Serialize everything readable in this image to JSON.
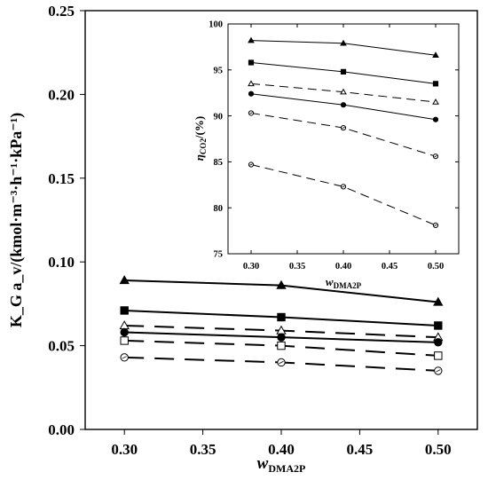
{
  "chart_data": [
    {
      "type": "line",
      "panel": "main",
      "x": [
        0.3,
        0.4,
        0.5
      ],
      "xlim": [
        0.275,
        0.525
      ],
      "ylim": [
        0.0,
        0.25
      ],
      "xticks": [
        0.3,
        0.35,
        0.4,
        0.45,
        0.5
      ],
      "yticks": [
        0.0,
        0.05,
        0.1,
        0.15,
        0.2,
        0.25
      ],
      "xtick_labels": [
        "0.30",
        "0.35",
        "0.40",
        "0.45",
        "0.50"
      ],
      "ytick_labels": [
        "0.00",
        "0.05",
        "0.10",
        "0.15",
        "0.20",
        "0.25"
      ],
      "xlabel_main": "w",
      "xlabel_sub": "DMA2P",
      "ylabel": "K_G a_v/(kmol·m⁻³·h⁻¹·kPa⁻¹)",
      "grid": false,
      "series": [
        {
          "values": [
            0.089,
            0.086,
            0.076
          ],
          "marker": "filled-triangle",
          "line": "solid"
        },
        {
          "values": [
            0.071,
            0.067,
            0.062
          ],
          "marker": "filled-square",
          "line": "solid"
        },
        {
          "values": [
            0.062,
            0.059,
            0.055
          ],
          "marker": "open-triangle",
          "line": "dashed"
        },
        {
          "values": [
            0.058,
            0.055,
            0.052
          ],
          "marker": "filled-circle",
          "line": "solid"
        },
        {
          "values": [
            0.053,
            0.05,
            0.044
          ],
          "marker": "open-square",
          "line": "dashed"
        },
        {
          "values": [
            0.043,
            0.04,
            0.035
          ],
          "marker": "open-circle",
          "line": "dashed"
        }
      ]
    },
    {
      "type": "line",
      "panel": "inset",
      "x": [
        0.3,
        0.4,
        0.5
      ],
      "xlim": [
        0.275,
        0.525
      ],
      "ylim": [
        75,
        100
      ],
      "xticks": [
        0.3,
        0.35,
        0.4,
        0.45,
        0.5
      ],
      "yticks": [
        75,
        80,
        85,
        90,
        95,
        100
      ],
      "xtick_labels": [
        "0.30",
        "0.35",
        "0.40",
        "0.45",
        "0.50"
      ],
      "ytick_labels": [
        "75",
        "80",
        "85",
        "90",
        "95",
        "100"
      ],
      "xlabel_main": "w",
      "xlabel_sub": "DMA2P",
      "ylabel_main": "η",
      "ylabel_sub": "CO2",
      "ylabel_tail": "/(%)",
      "grid": false,
      "series": [
        {
          "values": [
            98.2,
            97.9,
            96.6
          ],
          "marker": "filled-triangle",
          "line": "solid"
        },
        {
          "values": [
            95.8,
            94.8,
            93.5
          ],
          "marker": "filled-square",
          "line": "solid"
        },
        {
          "values": [
            93.5,
            92.6,
            91.5
          ],
          "marker": "open-triangle",
          "line": "dashed"
        },
        {
          "values": [
            92.4,
            91.2,
            89.6
          ],
          "marker": "filled-circle",
          "line": "solid"
        },
        {
          "values": [
            90.3,
            88.7,
            85.6
          ],
          "marker": "open-circle",
          "line": "dashed"
        },
        {
          "values": [
            84.7,
            82.3,
            78.1
          ],
          "marker": "open-circle",
          "line": "dashed"
        }
      ]
    }
  ]
}
